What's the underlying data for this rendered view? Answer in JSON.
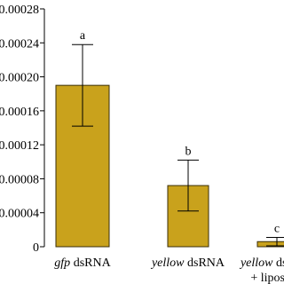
{
  "chart_data": {
    "type": "bar",
    "categories": [
      "gfp dsRNA",
      "yellow dsRNA",
      "yellow dsRNA + liposome"
    ],
    "values": [
      0.00019,
      7.2e-05,
      6e-06
    ],
    "errors": [
      4.8e-05,
      3e-05,
      5e-06
    ],
    "annotations": [
      "a",
      "b",
      "c"
    ],
    "color": "#c9a21c",
    "ylim": [
      0,
      0.00028
    ],
    "yticks": [
      0,
      4e-05,
      8e-05,
      0.00012,
      0.00016,
      0.0002,
      0.00024,
      0.00028
    ]
  }
}
